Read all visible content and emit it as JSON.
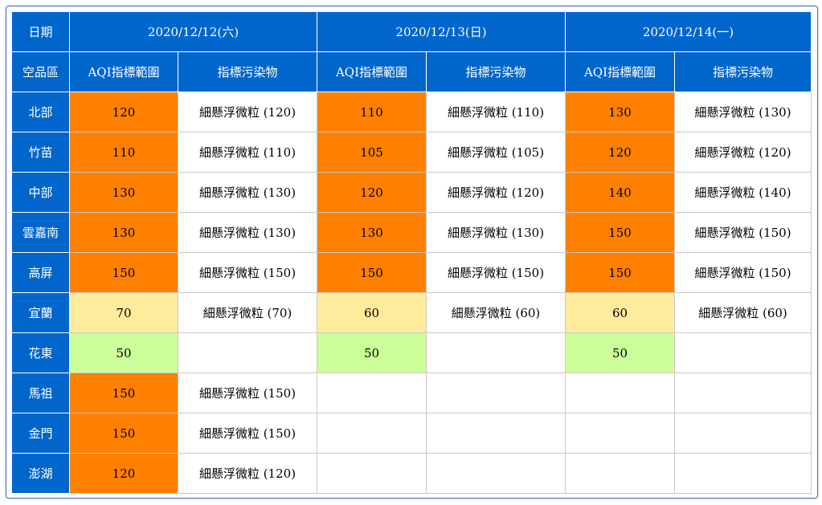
{
  "header": {
    "date_label": "日期",
    "region_label": "空品區",
    "dates": [
      "2020/12/12(六)",
      "2020/12/13(日)",
      "2020/12/14(一)"
    ],
    "aqi_label": "AQI指標範圍",
    "pollutant_label": "指標污染物"
  },
  "colors": {
    "header_bg": "#0066cc",
    "orange": "#ff8000",
    "yellow": "#ffeb9c",
    "green": "#ccff99"
  },
  "rows": [
    {
      "region": "北部",
      "days": [
        {
          "aqi": "120",
          "level": "orange",
          "pollutant": "細懸浮微粒 (120)"
        },
        {
          "aqi": "110",
          "level": "orange",
          "pollutant": "細懸浮微粒 (110)"
        },
        {
          "aqi": "130",
          "level": "orange",
          "pollutant": "細懸浮微粒 (130)"
        }
      ]
    },
    {
      "region": "竹苗",
      "days": [
        {
          "aqi": "110",
          "level": "orange",
          "pollutant": "細懸浮微粒 (110)"
        },
        {
          "aqi": "105",
          "level": "orange",
          "pollutant": "細懸浮微粒 (105)"
        },
        {
          "aqi": "120",
          "level": "orange",
          "pollutant": "細懸浮微粒 (120)"
        }
      ]
    },
    {
      "region": "中部",
      "days": [
        {
          "aqi": "130",
          "level": "orange",
          "pollutant": "細懸浮微粒 (130)"
        },
        {
          "aqi": "120",
          "level": "orange",
          "pollutant": "細懸浮微粒 (120)"
        },
        {
          "aqi": "140",
          "level": "orange",
          "pollutant": "細懸浮微粒 (140)"
        }
      ]
    },
    {
      "region": "雲嘉南",
      "days": [
        {
          "aqi": "130",
          "level": "orange",
          "pollutant": "細懸浮微粒 (130)"
        },
        {
          "aqi": "130",
          "level": "orange",
          "pollutant": "細懸浮微粒 (130)"
        },
        {
          "aqi": "150",
          "level": "orange",
          "pollutant": "細懸浮微粒 (150)"
        }
      ]
    },
    {
      "region": "高屏",
      "days": [
        {
          "aqi": "150",
          "level": "orange",
          "pollutant": "細懸浮微粒 (150)"
        },
        {
          "aqi": "150",
          "level": "orange",
          "pollutant": "細懸浮微粒 (150)"
        },
        {
          "aqi": "150",
          "level": "orange",
          "pollutant": "細懸浮微粒 (150)"
        }
      ]
    },
    {
      "region": "宜蘭",
      "days": [
        {
          "aqi": "70",
          "level": "yellow",
          "pollutant": "細懸浮微粒 (70)"
        },
        {
          "aqi": "60",
          "level": "yellow",
          "pollutant": "細懸浮微粒 (60)"
        },
        {
          "aqi": "60",
          "level": "yellow",
          "pollutant": "細懸浮微粒 (60)"
        }
      ]
    },
    {
      "region": "花東",
      "days": [
        {
          "aqi": "50",
          "level": "green",
          "pollutant": ""
        },
        {
          "aqi": "50",
          "level": "green",
          "pollutant": ""
        },
        {
          "aqi": "50",
          "level": "green",
          "pollutant": ""
        }
      ]
    },
    {
      "region": "馬祖",
      "days": [
        {
          "aqi": "150",
          "level": "orange",
          "pollutant": "細懸浮微粒 (150)"
        },
        {
          "aqi": "",
          "level": "none",
          "pollutant": ""
        },
        {
          "aqi": "",
          "level": "none",
          "pollutant": ""
        }
      ]
    },
    {
      "region": "金門",
      "days": [
        {
          "aqi": "150",
          "level": "orange",
          "pollutant": "細懸浮微粒 (150)"
        },
        {
          "aqi": "",
          "level": "none",
          "pollutant": ""
        },
        {
          "aqi": "",
          "level": "none",
          "pollutant": ""
        }
      ]
    },
    {
      "region": "澎湖",
      "days": [
        {
          "aqi": "120",
          "level": "orange",
          "pollutant": "細懸浮微粒 (120)"
        },
        {
          "aqi": "",
          "level": "none",
          "pollutant": ""
        },
        {
          "aqi": "",
          "level": "none",
          "pollutant": ""
        }
      ]
    }
  ]
}
